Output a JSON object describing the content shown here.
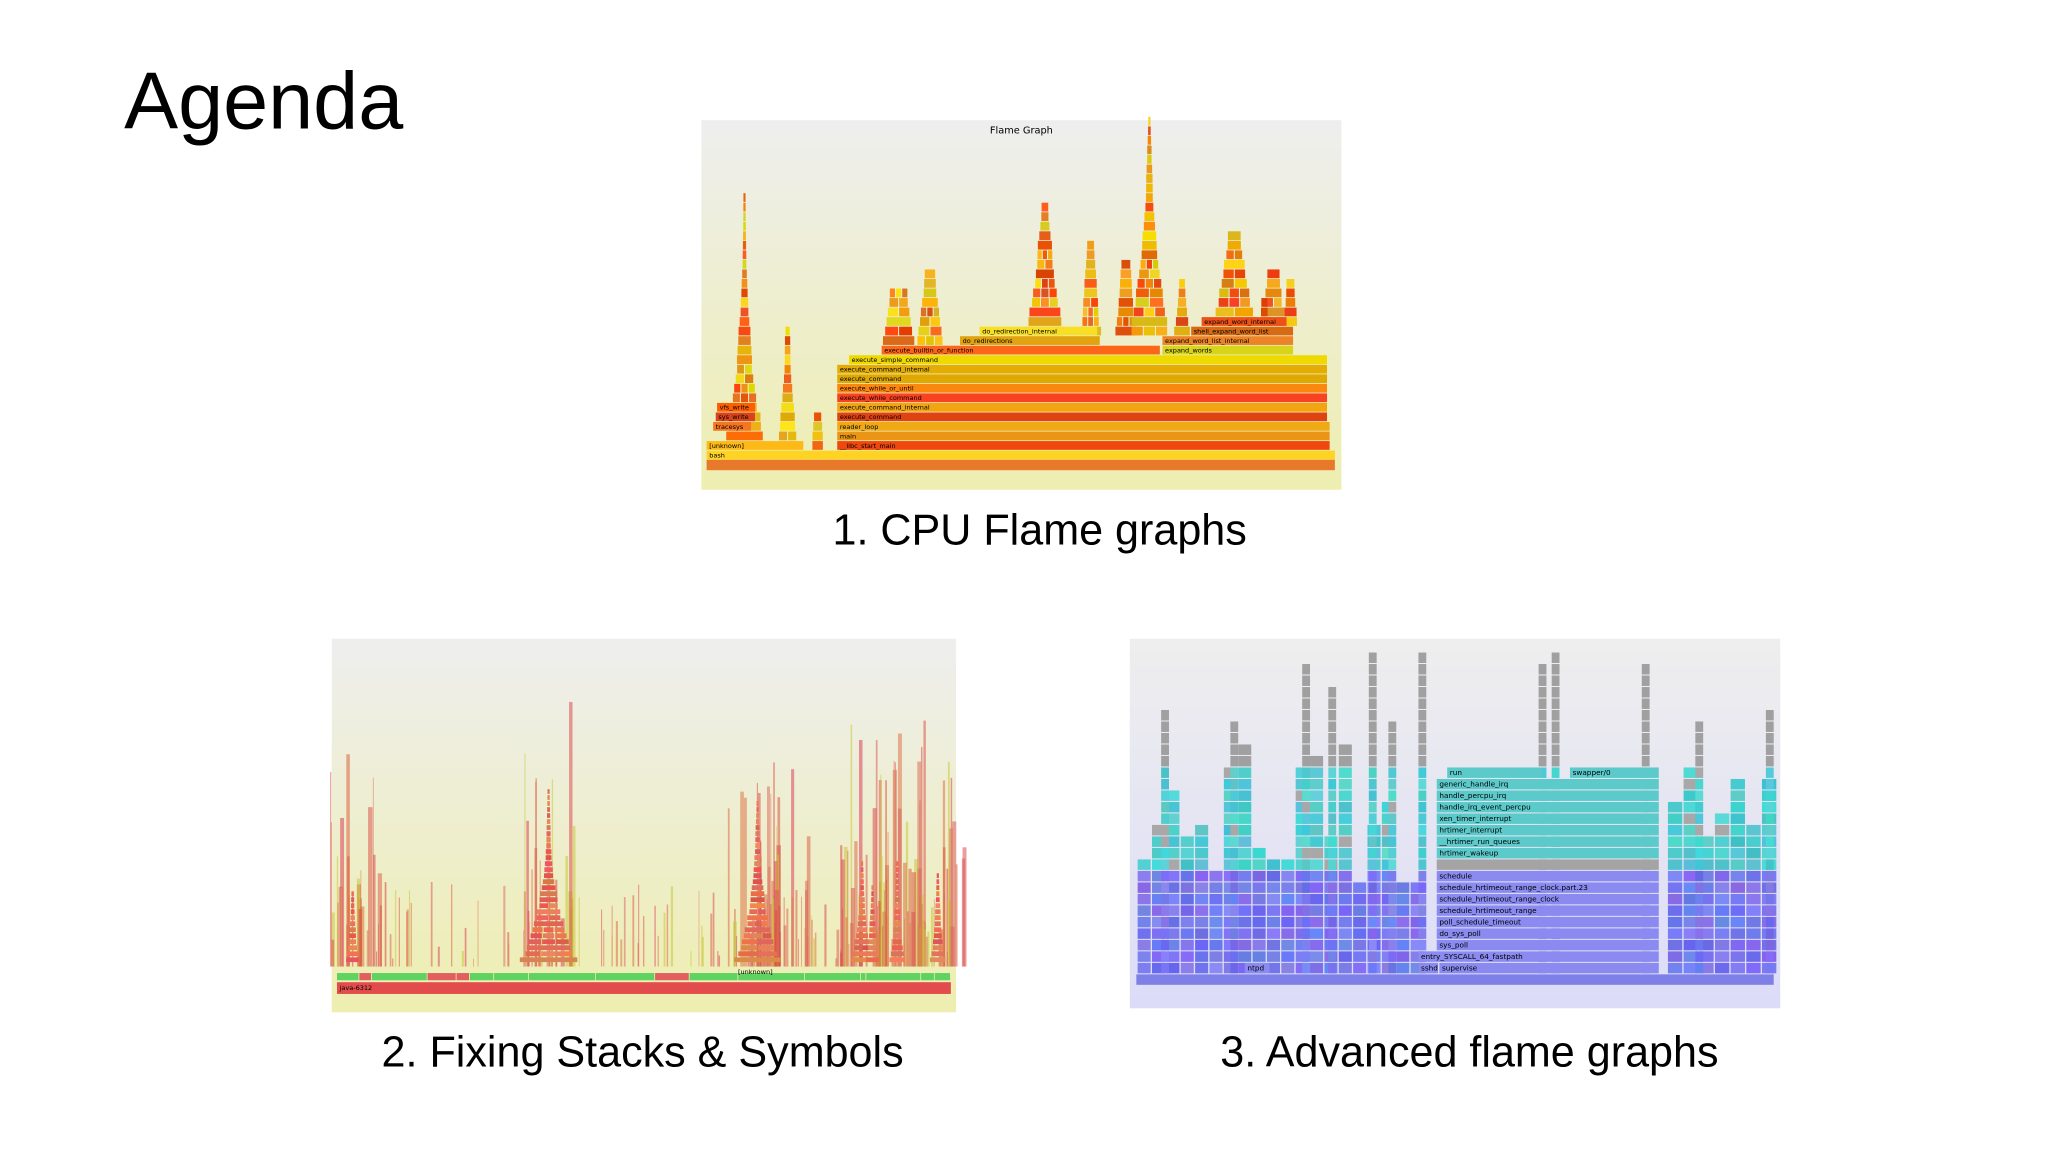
{
  "title": "Agenda",
  "items": [
    {
      "caption": "1. CPU Flame graphs",
      "image": {
        "title": "Flame Graph",
        "frames": [
          "bash",
          "[unknown]",
          "__libc_start_main",
          "main",
          "reader_loop",
          "tracesys",
          "sys_write",
          "vfs_write",
          "execute_command",
          "execute_command_internal",
          "execute_while_command",
          "execute_while_or_until",
          "execute_command",
          "execute_command_internal",
          "execute_simple_command",
          "execute_builtin_or_function",
          "expand_words",
          "do_redirections",
          "expand_word_list_internal",
          "do_redirection_internal",
          "shell_expand_word_list",
          "expand_word_internal"
        ]
      }
    },
    {
      "caption": "2. Fixing Stacks & Symbols",
      "image": {
        "frames": [
          "java-6312",
          "[unknown]"
        ]
      }
    },
    {
      "caption": "3. Advanced flame graphs",
      "image": {
        "frames": [
          "sshd",
          "supervise",
          "entry_SYSCALL_64_fastpath",
          "sys_poll",
          "do_sys_poll",
          "poll_schedule_timeout",
          "schedule_hrtimeout_range",
          "schedule_hrtimeout_range_clock",
          "schedule_hrtimeout_range_clock.part.23",
          "schedule",
          "hrtimer_wakeup",
          "__hrtimer_run_queues",
          "hrtimer_interrupt",
          "xen_timer_interrupt",
          "handle_irq_event_percpu",
          "handle_percpu_irq",
          "generic_handle_irq",
          "run",
          "swapper/0",
          "ntpd"
        ]
      }
    }
  ]
}
